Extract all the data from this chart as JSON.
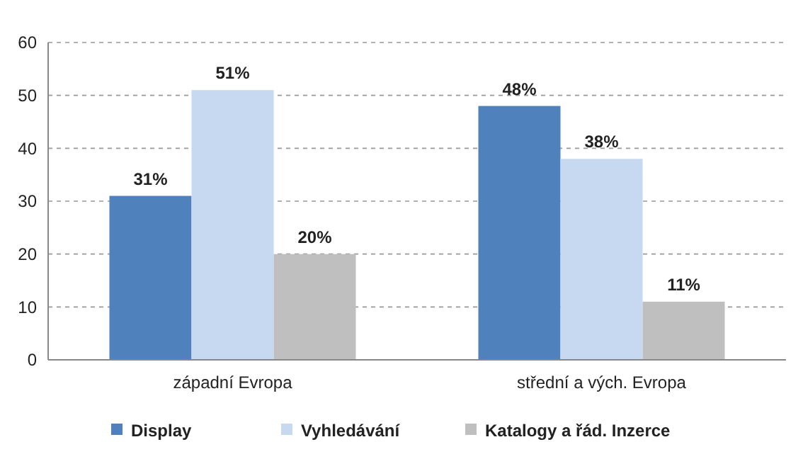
{
  "chart_data": {
    "type": "bar",
    "categories": [
      "západní Evropa",
      "střední a vých. Evropa"
    ],
    "series": [
      {
        "name": "Display",
        "color": "#4f81bd",
        "values": [
          31,
          48
        ],
        "value_labels": [
          "31%",
          "48%"
        ]
      },
      {
        "name": "Vyhledávání",
        "color": "#c6d9f1",
        "values": [
          51,
          38
        ],
        "value_labels": [
          "51%",
          "38%"
        ]
      },
      {
        "name": "Katalogy a řád. Inzerce",
        "color": "#bfbfbf",
        "values": [
          20,
          11
        ],
        "value_labels": [
          "20%",
          "11%"
        ]
      }
    ],
    "ylim": [
      0,
      60
    ],
    "yticks": [
      0,
      10,
      20,
      30,
      40,
      50,
      60
    ],
    "grid": "y",
    "legend": "bottom"
  }
}
